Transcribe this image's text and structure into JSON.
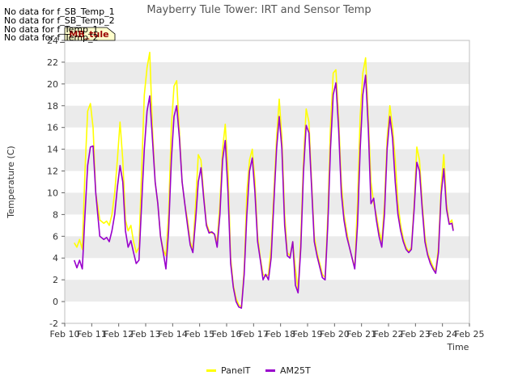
{
  "no_data_notes": [
    "No data for f_SB_Temp_1",
    "No data for f_SB_Temp_2",
    "No data for f_Temp_1",
    "No data for f_Temp_2"
  ],
  "badge": "MB_tule",
  "colors": {
    "panel": "#ffff00",
    "am25t": "#9900cc",
    "band": "#ebebeb",
    "badge_bg": "#ffffcc",
    "badge_text": "#990000"
  },
  "chart_data": {
    "type": "line",
    "title": "Mayberry Tule Tower: IRT and Sensor Temp",
    "xlabel": "Time",
    "ylabel": "Temperature (C)",
    "xlim": [
      10,
      25
    ],
    "ylim": [
      -2,
      24
    ],
    "x_ticks": [
      10,
      11,
      12,
      13,
      14,
      15,
      16,
      17,
      18,
      19,
      20,
      21,
      22,
      23,
      24,
      25
    ],
    "x_tick_labels": [
      "Feb 10",
      "Feb 11",
      "Feb 12",
      "Feb 13",
      "Feb 14",
      "Feb 15",
      "Feb 16",
      "Feb 17",
      "Feb 18",
      "Feb 19",
      "Feb 20",
      "Feb 21",
      "Feb 22",
      "Feb 23",
      "Feb 24",
      "Feb 25"
    ],
    "y_ticks": [
      -2,
      0,
      2,
      4,
      6,
      8,
      10,
      12,
      14,
      16,
      18,
      20,
      22,
      24
    ],
    "legend_position": "bottom",
    "series": [
      {
        "name": "PanelT",
        "points": [
          [
            10.35,
            5.4
          ],
          [
            10.45,
            5.0
          ],
          [
            10.55,
            5.7
          ],
          [
            10.65,
            4.8
          ],
          [
            10.75,
            12
          ],
          [
            10.85,
            17.5
          ],
          [
            10.95,
            18.2
          ],
          [
            11.05,
            16
          ],
          [
            11.15,
            10
          ],
          [
            11.3,
            7.5
          ],
          [
            11.45,
            7.2
          ],
          [
            11.55,
            7.4
          ],
          [
            11.65,
            7.0
          ],
          [
            11.75,
            8
          ],
          [
            11.85,
            10
          ],
          [
            11.95,
            13
          ],
          [
            12.05,
            16.5
          ],
          [
            12.15,
            13
          ],
          [
            12.25,
            7.5
          ],
          [
            12.35,
            6.5
          ],
          [
            12.45,
            7.0
          ],
          [
            12.55,
            5.5
          ],
          [
            12.65,
            4.5
          ],
          [
            12.75,
            5.0
          ],
          [
            12.85,
            12
          ],
          [
            12.95,
            19
          ],
          [
            13.05,
            21.5
          ],
          [
            13.15,
            22.9
          ],
          [
            13.25,
            16
          ],
          [
            13.35,
            11
          ],
          [
            13.45,
            9
          ],
          [
            13.55,
            6
          ],
          [
            13.65,
            4.8
          ],
          [
            13.75,
            4.2
          ],
          [
            13.85,
            8
          ],
          [
            13.95,
            16
          ],
          [
            14.05,
            19.8
          ],
          [
            14.15,
            20.3
          ],
          [
            14.25,
            15.5
          ],
          [
            14.35,
            11
          ],
          [
            14.45,
            9
          ],
          [
            14.55,
            7.5
          ],
          [
            14.65,
            5.5
          ],
          [
            14.75,
            4.8
          ],
          [
            14.85,
            9
          ],
          [
            14.95,
            13.5
          ],
          [
            15.05,
            13
          ],
          [
            15.15,
            9.8
          ],
          [
            15.25,
            7.2
          ],
          [
            15.35,
            6.5
          ],
          [
            15.45,
            6.3
          ],
          [
            15.55,
            6.2
          ],
          [
            15.65,
            5.5
          ],
          [
            15.75,
            9
          ],
          [
            15.85,
            14
          ],
          [
            15.95,
            16.3
          ],
          [
            16.05,
            12
          ],
          [
            16.15,
            4
          ],
          [
            16.25,
            1.5
          ],
          [
            16.35,
            0.3
          ],
          [
            16.45,
            -0.3
          ],
          [
            16.55,
            -0.5
          ],
          [
            16.65,
            3
          ],
          [
            16.75,
            10
          ],
          [
            16.85,
            13
          ],
          [
            16.95,
            14
          ],
          [
            17.05,
            11
          ],
          [
            17.15,
            6
          ],
          [
            17.25,
            4
          ],
          [
            17.35,
            2.5
          ],
          [
            17.45,
            2.3
          ],
          [
            17.55,
            2.5
          ],
          [
            17.65,
            5
          ],
          [
            17.75,
            10
          ],
          [
            17.85,
            15
          ],
          [
            17.95,
            18.6
          ],
          [
            18.05,
            15
          ],
          [
            18.15,
            8
          ],
          [
            18.25,
            4.5
          ],
          [
            18.35,
            4.2
          ],
          [
            18.45,
            5.5
          ],
          [
            18.55,
            3
          ],
          [
            18.65,
            1.0
          ],
          [
            18.75,
            6
          ],
          [
            18.85,
            13
          ],
          [
            18.95,
            17.7
          ],
          [
            19.05,
            16.5
          ],
          [
            19.15,
            11
          ],
          [
            19.25,
            6
          ],
          [
            19.35,
            4.5
          ],
          [
            19.45,
            3.5
          ],
          [
            19.55,
            2.5
          ],
          [
            19.65,
            2.2
          ],
          [
            19.75,
            8
          ],
          [
            19.85,
            16
          ],
          [
            19.95,
            21
          ],
          [
            20.05,
            21.3
          ],
          [
            20.15,
            17
          ],
          [
            20.25,
            11
          ],
          [
            20.35,
            8
          ],
          [
            20.45,
            6.5
          ],
          [
            20.55,
            5
          ],
          [
            20.65,
            4
          ],
          [
            20.75,
            3.2
          ],
          [
            20.85,
            9
          ],
          [
            20.95,
            17
          ],
          [
            21.05,
            21
          ],
          [
            21.15,
            22.4
          ],
          [
            21.25,
            17
          ],
          [
            21.35,
            11
          ],
          [
            21.45,
            9
          ],
          [
            21.55,
            8
          ],
          [
            21.65,
            6.5
          ],
          [
            21.75,
            5.5
          ],
          [
            21.85,
            9
          ],
          [
            21.95,
            15
          ],
          [
            22.05,
            18
          ],
          [
            22.15,
            16
          ],
          [
            22.25,
            13
          ],
          [
            22.35,
            9
          ],
          [
            22.45,
            7
          ],
          [
            22.55,
            5.8
          ],
          [
            22.65,
            5
          ],
          [
            22.75,
            4.6
          ],
          [
            22.85,
            5
          ],
          [
            22.95,
            9
          ],
          [
            23.05,
            14.2
          ],
          [
            23.15,
            13
          ],
          [
            23.25,
            9
          ],
          [
            23.35,
            6
          ],
          [
            23.45,
            4.5
          ],
          [
            23.55,
            3.8
          ],
          [
            23.65,
            3.2
          ],
          [
            23.75,
            2.8
          ],
          [
            23.85,
            5
          ],
          [
            23.95,
            10.5
          ],
          [
            24.05,
            13.5
          ],
          [
            24.15,
            9
          ],
          [
            24.25,
            7.2
          ],
          [
            24.35,
            7.5
          ],
          [
            24.4,
            6.6
          ]
        ]
      },
      {
        "name": "AM25T",
        "points": [
          [
            10.35,
            3.8
          ],
          [
            10.45,
            3.1
          ],
          [
            10.55,
            3.8
          ],
          [
            10.65,
            3.0
          ],
          [
            10.75,
            8
          ],
          [
            10.85,
            12.5
          ],
          [
            10.95,
            14.2
          ],
          [
            11.05,
            14.3
          ],
          [
            11.15,
            10
          ],
          [
            11.3,
            6.0
          ],
          [
            11.45,
            5.7
          ],
          [
            11.55,
            5.9
          ],
          [
            11.65,
            5.5
          ],
          [
            11.75,
            6.5
          ],
          [
            11.85,
            8
          ],
          [
            11.95,
            10.5
          ],
          [
            12.05,
            12.5
          ],
          [
            12.15,
            11
          ],
          [
            12.25,
            6.5
          ],
          [
            12.35,
            5.0
          ],
          [
            12.45,
            5.6
          ],
          [
            12.55,
            4.5
          ],
          [
            12.65,
            3.5
          ],
          [
            12.75,
            3.8
          ],
          [
            12.85,
            9
          ],
          [
            12.95,
            14
          ],
          [
            13.05,
            17.5
          ],
          [
            13.15,
            18.9
          ],
          [
            13.25,
            15
          ],
          [
            13.35,
            11
          ],
          [
            13.45,
            9
          ],
          [
            13.55,
            6
          ],
          [
            13.65,
            4.5
          ],
          [
            13.75,
            3.0
          ],
          [
            13.85,
            6.5
          ],
          [
            13.95,
            13
          ],
          [
            14.05,
            17
          ],
          [
            14.15,
            18
          ],
          [
            14.25,
            15
          ],
          [
            14.35,
            11
          ],
          [
            14.45,
            9
          ],
          [
            14.55,
            7.0
          ],
          [
            14.65,
            5.2
          ],
          [
            14.75,
            4.5
          ],
          [
            14.85,
            7.5
          ],
          [
            14.95,
            11
          ],
          [
            15.05,
            12.3
          ],
          [
            15.15,
            9.5
          ],
          [
            15.25,
            7.0
          ],
          [
            15.35,
            6.3
          ],
          [
            15.45,
            6.4
          ],
          [
            15.55,
            6.2
          ],
          [
            15.65,
            5.0
          ],
          [
            15.75,
            8
          ],
          [
            15.85,
            13
          ],
          [
            15.95,
            14.8
          ],
          [
            16.05,
            10
          ],
          [
            16.15,
            3.5
          ],
          [
            16.25,
            1.3
          ],
          [
            16.35,
            0.0
          ],
          [
            16.45,
            -0.5
          ],
          [
            16.55,
            -0.6
          ],
          [
            16.65,
            2.5
          ],
          [
            16.75,
            8
          ],
          [
            16.85,
            12
          ],
          [
            16.95,
            13.2
          ],
          [
            17.05,
            10
          ],
          [
            17.15,
            5.5
          ],
          [
            17.25,
            3.8
          ],
          [
            17.35,
            2.0
          ],
          [
            17.45,
            2.5
          ],
          [
            17.55,
            2.0
          ],
          [
            17.65,
            4
          ],
          [
            17.75,
            9
          ],
          [
            17.85,
            14
          ],
          [
            17.95,
            17
          ],
          [
            18.05,
            14
          ],
          [
            18.15,
            7
          ],
          [
            18.25,
            4.2
          ],
          [
            18.35,
            4.0
          ],
          [
            18.45,
            5.5
          ],
          [
            18.55,
            1.5
          ],
          [
            18.65,
            0.8
          ],
          [
            18.75,
            5
          ],
          [
            18.85,
            12
          ],
          [
            18.95,
            16.2
          ],
          [
            19.05,
            15.5
          ],
          [
            19.15,
            10.5
          ],
          [
            19.25,
            5.5
          ],
          [
            19.35,
            4.2
          ],
          [
            19.45,
            3.2
          ],
          [
            19.55,
            2.2
          ],
          [
            19.65,
            2.0
          ],
          [
            19.75,
            7
          ],
          [
            19.85,
            14
          ],
          [
            19.95,
            19
          ],
          [
            20.05,
            20.1
          ],
          [
            20.15,
            16
          ],
          [
            20.25,
            10
          ],
          [
            20.35,
            7.5
          ],
          [
            20.45,
            6
          ],
          [
            20.55,
            5
          ],
          [
            20.65,
            4
          ],
          [
            20.75,
            3.0
          ],
          [
            20.85,
            7
          ],
          [
            20.95,
            14
          ],
          [
            21.05,
            19
          ],
          [
            21.15,
            20.8
          ],
          [
            21.25,
            16
          ],
          [
            21.35,
            9
          ],
          [
            21.45,
            9.5
          ],
          [
            21.55,
            7.5
          ],
          [
            21.65,
            6
          ],
          [
            21.75,
            5.0
          ],
          [
            21.85,
            8
          ],
          [
            21.95,
            14
          ],
          [
            22.05,
            17
          ],
          [
            22.15,
            15
          ],
          [
            22.25,
            11
          ],
          [
            22.35,
            8
          ],
          [
            22.45,
            6.5
          ],
          [
            22.55,
            5.5
          ],
          [
            22.65,
            4.8
          ],
          [
            22.75,
            4.5
          ],
          [
            22.85,
            4.8
          ],
          [
            22.95,
            8.5
          ],
          [
            23.05,
            12.8
          ],
          [
            23.15,
            12
          ],
          [
            23.25,
            8.5
          ],
          [
            23.35,
            5.5
          ],
          [
            23.45,
            4.3
          ],
          [
            23.55,
            3.5
          ],
          [
            23.65,
            3.0
          ],
          [
            23.75,
            2.6
          ],
          [
            23.85,
            4.5
          ],
          [
            23.95,
            9.8
          ],
          [
            24.05,
            12.2
          ],
          [
            24.15,
            8.5
          ],
          [
            24.25,
            7.1
          ],
          [
            24.35,
            7.2
          ],
          [
            24.4,
            6.5
          ]
        ]
      }
    ]
  }
}
